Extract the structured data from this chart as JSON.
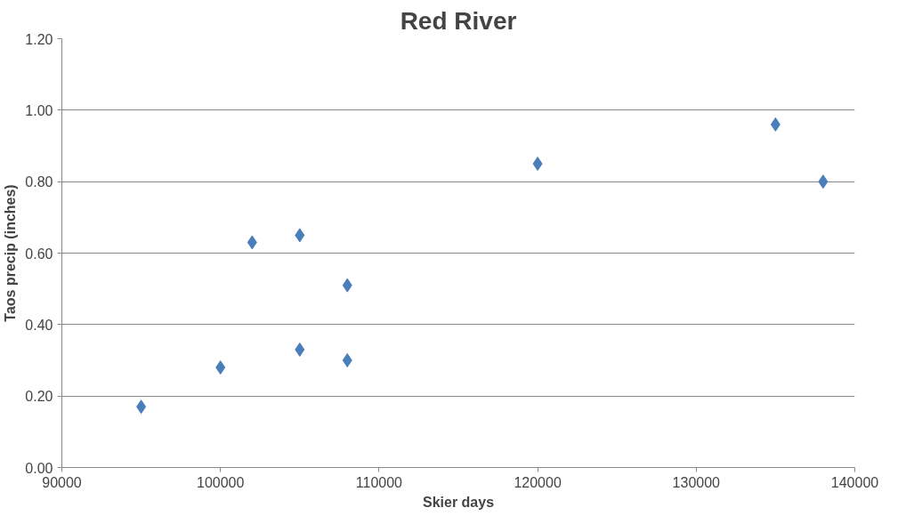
{
  "chart_data": {
    "type": "scatter",
    "title": "Red River",
    "xlabel": "Skier days",
    "ylabel": "Taos precip (inches)",
    "x": [
      95000,
      100000,
      102000,
      105000,
      105000,
      108000,
      108000,
      120000,
      135000,
      138000
    ],
    "series": [
      {
        "color": "#4a7ebb",
        "values": [
          0.17,
          0.28,
          0.63,
          0.65,
          0.33,
          0.51,
          0.3,
          0.85,
          0.96,
          0.8
        ]
      }
    ],
    "xlim": [
      90000,
      140000
    ],
    "xticks": [
      90000,
      100000,
      110000,
      120000,
      130000,
      140000
    ],
    "ylim": [
      0,
      1.2
    ],
    "yticks": [
      {
        "value": 0,
        "label": "0.00"
      },
      {
        "value": 0.2,
        "label": "0.20"
      },
      {
        "value": 0.4,
        "label": "0.40"
      },
      {
        "value": 0.6,
        "label": "0.60"
      },
      {
        "value": 0.8,
        "label": "0.80"
      },
      {
        "value": 1.0,
        "label": "1.00"
      },
      {
        "value": 1.2,
        "label": "1.20"
      }
    ],
    "grid": "y",
    "marker": "diamond"
  }
}
